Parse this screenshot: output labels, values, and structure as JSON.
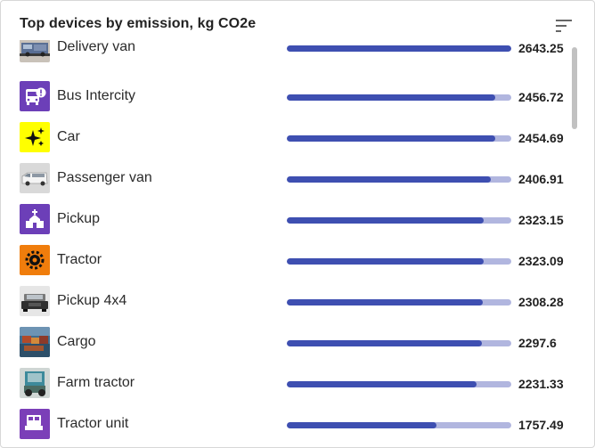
{
  "widget": {
    "title": "Top devices by emission, kg CO2e",
    "sort_icon": "sort-lines-icon",
    "bar_color": "#3e4fb1",
    "track_color": "#b1b6df",
    "bar_max": 2643.25
  },
  "devices": [
    {
      "name": "Delivery van",
      "value": "2643.25",
      "amount": 2643.25,
      "icon": "delivery-van-photo-icon"
    },
    {
      "name": "Bus Intercity",
      "value": "2456.72",
      "amount": 2456.72,
      "icon": "bus-icon"
    },
    {
      "name": "Car",
      "value": "2454.69",
      "amount": 2454.69,
      "icon": "sparkle-icon"
    },
    {
      "name": "Passenger van",
      "value": "2406.91",
      "amount": 2406.91,
      "icon": "passenger-van-photo-icon"
    },
    {
      "name": "Pickup",
      "value": "2323.15",
      "amount": 2323.15,
      "icon": "church-icon"
    },
    {
      "name": "Tractor",
      "value": "2323.09",
      "amount": 2323.09,
      "icon": "gear-icon"
    },
    {
      "name": "Pickup 4x4",
      "value": "2308.28",
      "amount": 2308.28,
      "icon": "pickup-photo-icon"
    },
    {
      "name": "Cargo",
      "value": "2297.6",
      "amount": 2297.6,
      "icon": "cargo-photo-icon"
    },
    {
      "name": "Farm tractor",
      "value": "2231.33",
      "amount": 2231.33,
      "icon": "farm-tractor-photo-icon"
    },
    {
      "name": "Tractor unit",
      "value": "1757.49",
      "amount": 1757.49,
      "icon": "truck-icon"
    }
  ]
}
